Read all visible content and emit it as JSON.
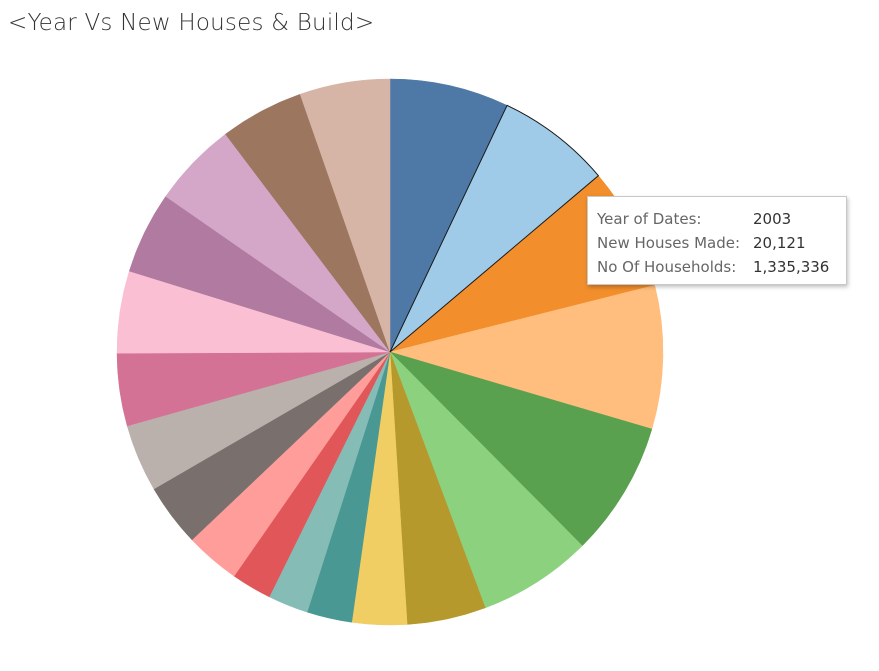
{
  "chart_data": {
    "type": "pie",
    "title": "<Year Vs New Houses & Build>",
    "start_angle_deg": 0,
    "slices": [
      {
        "value": 7.4,
        "color": "#4e79a7"
      },
      {
        "value": 7.1,
        "color": "#a0cbe8"
      },
      {
        "value": 7.6,
        "color": "#f28e2b"
      },
      {
        "value": 8.9,
        "color": "#ffbe7d"
      },
      {
        "value": 8.4,
        "color": "#59a14f"
      },
      {
        "value": 7.1,
        "color": "#8cd17d"
      },
      {
        "value": 4.9,
        "color": "#b6992d"
      },
      {
        "value": 3.4,
        "color": "#f1ce63"
      },
      {
        "value": 2.8,
        "color": "#499894"
      },
      {
        "value": 2.5,
        "color": "#86bcb6"
      },
      {
        "value": 2.5,
        "color": "#e15759"
      },
      {
        "value": 3.4,
        "color": "#ff9d9a"
      },
      {
        "value": 3.9,
        "color": "#79706e"
      },
      {
        "value": 4.2,
        "color": "#bab0ac"
      },
      {
        "value": 4.5,
        "color": "#d37295"
      },
      {
        "value": 5.1,
        "color": "#fabfd2"
      },
      {
        "value": 5.1,
        "color": "#b07aa1"
      },
      {
        "value": 5.3,
        "color": "#d4a6c8"
      },
      {
        "value": 5.2,
        "color": "#9d7660"
      },
      {
        "value": 5.6,
        "color": "#d7b5a6"
      }
    ],
    "highlighted_slice": 1
  },
  "tooltip": {
    "rows": [
      {
        "label": "Year of Dates:",
        "value": "2003"
      },
      {
        "label": "New Houses Made:",
        "value": "20,121"
      },
      {
        "label": "No Of Households:",
        "value": "1,335,336"
      }
    ]
  }
}
